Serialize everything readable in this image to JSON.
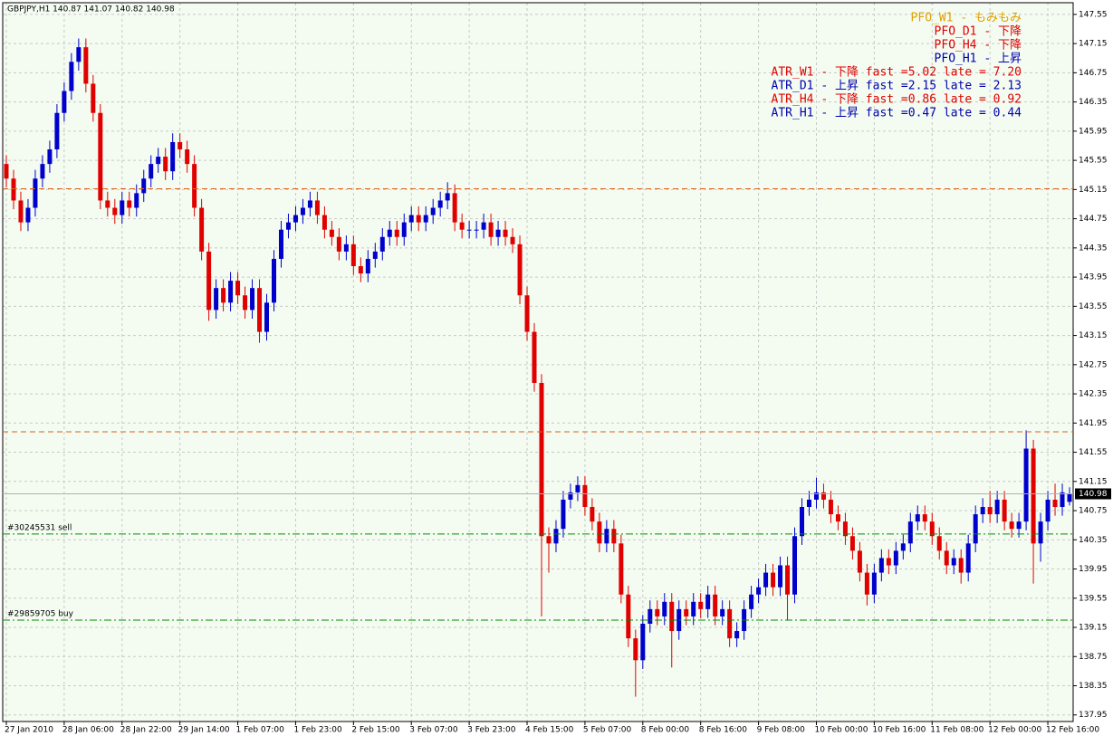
{
  "chart_data": {
    "type": "candlestick",
    "title": "GBPJPY,H1  140.87 141.07 140.82 140.98",
    "categories": [
      "27 Jan 2010",
      null,
      null,
      null,
      null,
      null,
      null,
      null,
      "28 Jan 06:00",
      null,
      null,
      null,
      null,
      null,
      null,
      null,
      "28 Jan 22:00",
      null,
      null,
      null,
      null,
      null,
      null,
      null,
      "29 Jan 14:00",
      null,
      null,
      null,
      null,
      null,
      null,
      null,
      "1 Feb 07:00",
      null,
      null,
      null,
      null,
      null,
      null,
      null,
      "1 Feb 23:00",
      null,
      null,
      null,
      null,
      null,
      null,
      null,
      "2 Feb 15:00",
      null,
      null,
      null,
      null,
      null,
      null,
      null,
      "3 Feb 07:00",
      null,
      null,
      null,
      null,
      null,
      null,
      null,
      "3 Feb 23:00",
      null,
      null,
      null,
      null,
      null,
      null,
      null,
      "4 Feb 15:00",
      null,
      null,
      null,
      null,
      null,
      null,
      null,
      "5 Feb 07:00",
      null,
      null,
      null,
      null,
      null,
      null,
      null,
      "8 Feb 00:00",
      null,
      null,
      null,
      null,
      null,
      null,
      null,
      "8 Feb 16:00",
      null,
      null,
      null,
      null,
      null,
      null,
      null,
      "9 Feb 08:00",
      null,
      null,
      null,
      null,
      null,
      null,
      null,
      "10 Feb 00:00",
      null,
      null,
      null,
      null,
      null,
      null,
      null,
      "10 Feb 16:00",
      null,
      null,
      null,
      null,
      null,
      null,
      null,
      "11 Feb 08:00",
      null,
      null,
      null,
      null,
      null,
      null,
      null,
      "12 Feb 00:00",
      null,
      null,
      null,
      null,
      null,
      null,
      null,
      "12 Feb 16:00",
      null,
      null,
      null
    ],
    "open": [
      145.5,
      145.3,
      145.0,
      144.7,
      144.9,
      145.3,
      145.5,
      145.7,
      146.2,
      146.5,
      146.9,
      147.1,
      146.6,
      146.2,
      145.0,
      144.9,
      144.8,
      145.0,
      144.9,
      145.1,
      145.3,
      145.5,
      145.6,
      145.4,
      145.8,
      145.7,
      145.5,
      144.9,
      144.3,
      143.5,
      143.8,
      143.6,
      143.9,
      143.7,
      143.5,
      143.8,
      143.2,
      143.6,
      144.2,
      144.6,
      144.7,
      144.8,
      144.9,
      145.0,
      144.8,
      144.6,
      144.5,
      144.3,
      144.4,
      144.1,
      144.0,
      144.2,
      144.3,
      144.5,
      144.6,
      144.5,
      144.7,
      144.8,
      144.7,
      144.8,
      144.9,
      145.0,
      145.1,
      144.7,
      144.6,
      144.6,
      144.6,
      144.7,
      144.5,
      144.6,
      144.5,
      144.4,
      143.7,
      143.2,
      142.5,
      140.4,
      140.3,
      140.5,
      140.9,
      141.0,
      141.1,
      140.8,
      140.6,
      140.3,
      140.5,
      140.3,
      139.6,
      139.0,
      138.7,
      139.2,
      139.4,
      139.3,
      139.5,
      139.1,
      139.4,
      139.3,
      139.5,
      139.4,
      139.6,
      139.3,
      139.4,
      139.0,
      139.1,
      139.4,
      139.6,
      139.7,
      139.9,
      139.7,
      140.0,
      139.6,
      140.4,
      140.8,
      140.9,
      141.0,
      140.9,
      140.7,
      140.6,
      140.4,
      140.2,
      139.9,
      139.6,
      139.9,
      140.1,
      140.0,
      140.2,
      140.3,
      140.6,
      140.7,
      140.6,
      140.4,
      140.2,
      140.0,
      140.1,
      139.9,
      140.3,
      140.7,
      140.8,
      140.7,
      140.9,
      140.6,
      140.5,
      140.6,
      141.6,
      140.3,
      140.6,
      140.9,
      140.8,
      140.87
    ],
    "high": [
      145.62,
      145.42,
      145.12,
      145.02,
      145.42,
      145.62,
      145.82,
      146.32,
      146.62,
      147.02,
      147.22,
      147.22,
      146.72,
      146.32,
      145.12,
      145.02,
      145.12,
      145.12,
      145.22,
      145.42,
      145.62,
      145.72,
      145.72,
      145.92,
      145.92,
      145.82,
      145.62,
      145.02,
      144.42,
      143.92,
      143.92,
      144.02,
      144.02,
      143.82,
      143.92,
      143.92,
      143.72,
      144.32,
      144.72,
      144.82,
      144.92,
      145.02,
      145.12,
      145.12,
      144.92,
      144.72,
      144.62,
      144.52,
      144.52,
      144.22,
      144.32,
      144.42,
      144.62,
      144.72,
      144.72,
      144.82,
      144.92,
      144.92,
      144.92,
      145.02,
      145.12,
      145.25,
      145.22,
      144.82,
      144.72,
      144.72,
      144.82,
      144.82,
      144.72,
      144.72,
      144.62,
      144.52,
      143.82,
      143.32,
      142.62,
      140.52,
      140.62,
      141.02,
      141.12,
      141.22,
      141.22,
      140.92,
      140.72,
      140.62,
      140.62,
      140.42,
      139.72,
      139.12,
      139.32,
      139.52,
      139.52,
      139.62,
      139.62,
      139.52,
      139.52,
      139.62,
      139.62,
      139.72,
      139.72,
      139.52,
      139.52,
      139.22,
      139.52,
      139.72,
      139.82,
      140.02,
      140.02,
      140.12,
      140.12,
      140.52,
      140.92,
      141.02,
      141.2,
      141.12,
      141.02,
      140.82,
      140.72,
      140.52,
      140.32,
      140.02,
      140.02,
      140.22,
      140.22,
      140.32,
      140.42,
      140.72,
      140.82,
      140.82,
      140.72,
      140.52,
      140.32,
      140.22,
      140.22,
      140.42,
      140.82,
      140.92,
      141.02,
      141.02,
      141.02,
      140.72,
      140.72,
      141.85,
      141.72,
      140.72,
      141.02,
      141.12,
      141.12,
      141.07
    ],
    "low": [
      145.18,
      144.88,
      144.58,
      144.58,
      144.78,
      145.18,
      145.38,
      145.58,
      146.08,
      146.38,
      146.78,
      146.48,
      146.08,
      144.88,
      144.78,
      144.68,
      144.68,
      144.78,
      144.78,
      144.98,
      145.18,
      145.38,
      145.28,
      145.28,
      145.58,
      145.38,
      144.78,
      144.18,
      143.35,
      143.38,
      143.48,
      143.48,
      143.58,
      143.38,
      143.38,
      143.05,
      143.08,
      143.48,
      144.08,
      144.48,
      144.58,
      144.68,
      144.78,
      144.68,
      144.48,
      144.38,
      144.18,
      144.18,
      143.98,
      143.88,
      143.88,
      144.08,
      144.18,
      144.38,
      144.38,
      144.38,
      144.58,
      144.58,
      144.58,
      144.68,
      144.78,
      144.88,
      144.58,
      144.48,
      144.48,
      144.48,
      144.48,
      144.38,
      144.38,
      144.38,
      144.28,
      143.58,
      143.08,
      142.38,
      139.3,
      139.9,
      140.18,
      140.38,
      140.78,
      140.88,
      140.68,
      140.48,
      140.18,
      140.18,
      140.18,
      139.48,
      138.88,
      138.2,
      138.58,
      139.08,
      139.18,
      139.18,
      138.6,
      138.98,
      139.18,
      139.18,
      139.28,
      139.28,
      139.18,
      139.18,
      138.88,
      138.88,
      138.98,
      139.28,
      139.48,
      139.58,
      139.58,
      139.58,
      139.25,
      139.48,
      140.28,
      140.68,
      140.78,
      140.78,
      140.58,
      140.48,
      140.28,
      140.08,
      139.78,
      139.45,
      139.48,
      139.78,
      139.88,
      139.88,
      140.08,
      140.18,
      140.48,
      140.48,
      140.28,
      140.08,
      139.88,
      139.88,
      139.75,
      139.78,
      140.18,
      140.58,
      140.58,
      140.58,
      140.48,
      140.38,
      140.38,
      140.48,
      139.75,
      140.05,
      140.48,
      140.68,
      140.68,
      140.82
    ],
    "close": [
      145.3,
      145.0,
      144.7,
      144.9,
      145.3,
      145.5,
      145.7,
      146.2,
      146.5,
      146.9,
      147.1,
      146.6,
      146.2,
      145.0,
      144.9,
      144.8,
      145.0,
      144.9,
      145.1,
      145.3,
      145.5,
      145.6,
      145.4,
      145.8,
      145.7,
      145.5,
      144.9,
      144.3,
      143.5,
      143.8,
      143.6,
      143.9,
      143.7,
      143.5,
      143.8,
      143.2,
      143.6,
      144.2,
      144.6,
      144.7,
      144.8,
      144.9,
      145.0,
      144.8,
      144.6,
      144.5,
      144.3,
      144.4,
      144.1,
      144.0,
      144.2,
      144.3,
      144.5,
      144.6,
      144.5,
      144.7,
      144.8,
      144.7,
      144.8,
      144.9,
      145.0,
      145.1,
      144.7,
      144.6,
      144.6,
      144.6,
      144.7,
      144.5,
      144.6,
      144.5,
      144.4,
      143.7,
      143.2,
      142.5,
      140.4,
      140.3,
      140.5,
      140.9,
      141.0,
      141.1,
      140.8,
      140.6,
      140.3,
      140.5,
      140.3,
      139.6,
      139.0,
      138.7,
      139.2,
      139.4,
      139.3,
      139.5,
      139.1,
      139.4,
      139.3,
      139.5,
      139.4,
      139.6,
      139.3,
      139.4,
      139.0,
      139.1,
      139.4,
      139.6,
      139.7,
      139.9,
      139.7,
      140.0,
      139.6,
      140.4,
      140.8,
      140.9,
      141.0,
      140.9,
      140.7,
      140.6,
      140.4,
      140.2,
      139.9,
      139.6,
      139.9,
      140.1,
      140.0,
      140.2,
      140.3,
      140.6,
      140.7,
      140.6,
      140.4,
      140.2,
      140.0,
      140.1,
      139.9,
      140.3,
      140.7,
      140.8,
      140.7,
      140.9,
      140.6,
      140.5,
      140.6,
      141.6,
      140.3,
      140.6,
      140.9,
      140.8,
      141.0,
      140.98
    ],
    "up_color": "#0000cc",
    "down_color": "#e00000",
    "ylim": [
      137.86,
      147.71
    ],
    "yticks": [
      147.55,
      147.15,
      146.75,
      146.35,
      145.95,
      145.55,
      145.15,
      144.75,
      144.35,
      143.95,
      143.55,
      143.15,
      142.75,
      142.35,
      141.95,
      141.55,
      141.15,
      140.75,
      140.35,
      139.95,
      139.55,
      139.15,
      138.75,
      138.35,
      137.95
    ],
    "grid": true,
    "hlines": [
      {
        "value": 145.16,
        "color": "#e0601a",
        "style": "dash"
      },
      {
        "value": 141.83,
        "color": "#e0601a",
        "style": "dash"
      },
      {
        "value": 140.43,
        "color": "#008a00",
        "style": "dashdot",
        "label": "#30245531 sell"
      },
      {
        "value": 139.25,
        "color": "#008a00",
        "style": "dashdot",
        "label": "#29859705 buy"
      }
    ],
    "last_price": 140.98,
    "annotations": [
      {
        "text": "PFO_W1 - もみもみ",
        "color": "#e0a000"
      },
      {
        "text": "PFO_D1 - 下降",
        "color": "#e00000"
      },
      {
        "text": "PFO_H4 - 下降",
        "color": "#e00000"
      },
      {
        "text": "PFO_H1 - 上昇",
        "color": "#0000aa"
      },
      {
        "text": "ATR_W1 - 下降 fast =5.02 late = 7.20",
        "color": "#e00000"
      },
      {
        "text": "ATR_D1 - 上昇 fast =2.15 late = 2.13",
        "color": "#0000aa"
      },
      {
        "text": "ATR_H4 - 下降 fast =0.86 late = 0.92",
        "color": "#e00000"
      },
      {
        "text": "ATR_H1 - 上昇 fast =0.47 late = 0.44",
        "color": "#0000aa"
      }
    ]
  }
}
